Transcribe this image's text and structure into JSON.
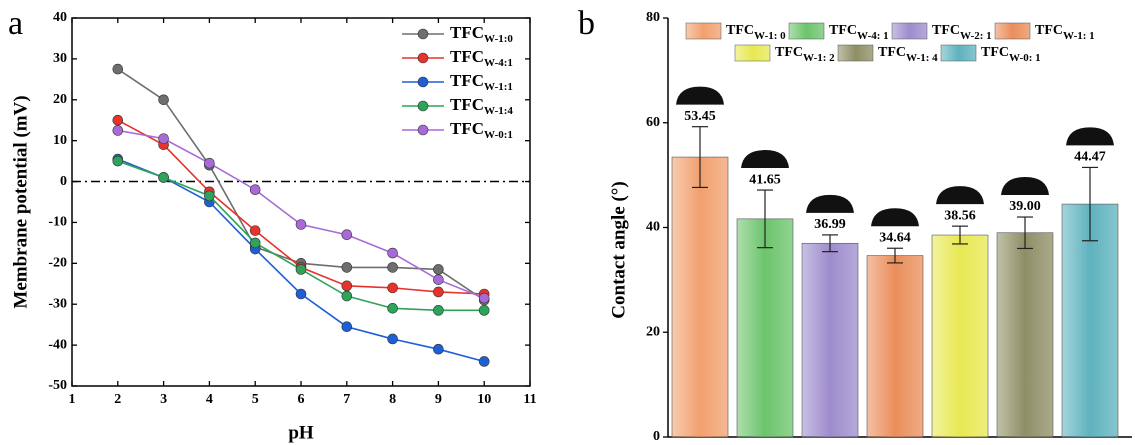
{
  "chart_data": [
    {
      "type": "line",
      "panel_label": "a",
      "xlabel": "pH",
      "ylabel": "Membrane potential (mV)",
      "x": [
        2,
        3,
        4,
        5,
        6,
        7,
        8,
        9,
        10
      ],
      "xlim": [
        1,
        11
      ],
      "xticks": [
        1,
        2,
        3,
        4,
        5,
        6,
        7,
        8,
        9,
        10,
        11
      ],
      "ylim": [
        -50,
        40
      ],
      "yticks": [
        -50,
        -40,
        -30,
        -20,
        -10,
        0,
        10,
        20,
        30,
        40
      ],
      "reference_line": 0,
      "legend": "upper right",
      "series": [
        {
          "name": "TFC",
          "subscript": "W-1:0",
          "color": "#6e6e6e",
          "values": [
            27.5,
            20,
            4,
            -16,
            -20,
            -21,
            -21,
            -21.5,
            -29
          ]
        },
        {
          "name": "TFC",
          "subscript": "W-4:1",
          "color": "#e8322c",
          "values": [
            15,
            9,
            -2.5,
            -12,
            -21,
            -25.5,
            -26,
            -27,
            -27.5
          ]
        },
        {
          "name": "TFC",
          "subscript": "W-1:1",
          "color": "#1f5fd6",
          "values": [
            5.5,
            1,
            -5,
            -16.5,
            -27.5,
            -35.5,
            -38.5,
            -41,
            -44
          ]
        },
        {
          "name": "TFC",
          "subscript": "W-1:4",
          "color": "#2ea35a",
          "values": [
            5,
            1,
            -3.5,
            -15,
            -21.5,
            -28,
            -31,
            -31.5,
            -31.5
          ]
        },
        {
          "name": "TFC",
          "subscript": "W-0:1",
          "color": "#a86ad8",
          "values": [
            12.5,
            10.5,
            4.5,
            -2,
            -10.5,
            -13,
            -17.5,
            -24,
            -28.5
          ]
        }
      ]
    },
    {
      "type": "bar",
      "panel_label": "b",
      "ylabel": "Contact angle (°)",
      "ylim": [
        0,
        80
      ],
      "yticks": [
        0,
        20,
        40,
        60,
        80
      ],
      "legend": "upper center",
      "series": [
        {
          "name": "TFC",
          "subscript": "W-1: 0",
          "color": "#f2a06e",
          "values": [
            53.45
          ],
          "errors": [
            5.8
          ],
          "value_labels": [
            "53.45"
          ]
        },
        {
          "name": "TFC",
          "subscript": "W-4: 1",
          "color": "#6cc46c",
          "values": [
            41.65
          ],
          "errors": [
            5.5
          ],
          "value_labels": [
            "41.65"
          ]
        },
        {
          "name": "TFC",
          "subscript": "W-2: 1",
          "color": "#9d8ccc",
          "values": [
            36.99
          ],
          "errors": [
            1.6
          ],
          "value_labels": [
            "36.99"
          ]
        },
        {
          "name": "TFC",
          "subscript": "W-1: 1",
          "color": "#ea8e5a",
          "values": [
            34.64
          ],
          "errors": [
            1.4
          ],
          "value_labels": [
            "34.64"
          ]
        },
        {
          "name": "TFC",
          "subscript": "W-1: 2",
          "color": "#e8e852",
          "values": [
            38.56
          ],
          "errors": [
            1.7
          ],
          "value_labels": [
            "38.56"
          ]
        },
        {
          "name": "TFC",
          "subscript": "W-1: 4",
          "color": "#8e8e66",
          "values": [
            39.0
          ],
          "errors": [
            3.0
          ],
          "value_labels": [
            "39.00"
          ]
        },
        {
          "name": "TFC",
          "subscript": "W-0: 1",
          "color": "#5eb2be",
          "values": [
            44.47
          ],
          "errors": [
            7.0
          ],
          "value_labels": [
            "44.47"
          ]
        }
      ]
    }
  ]
}
